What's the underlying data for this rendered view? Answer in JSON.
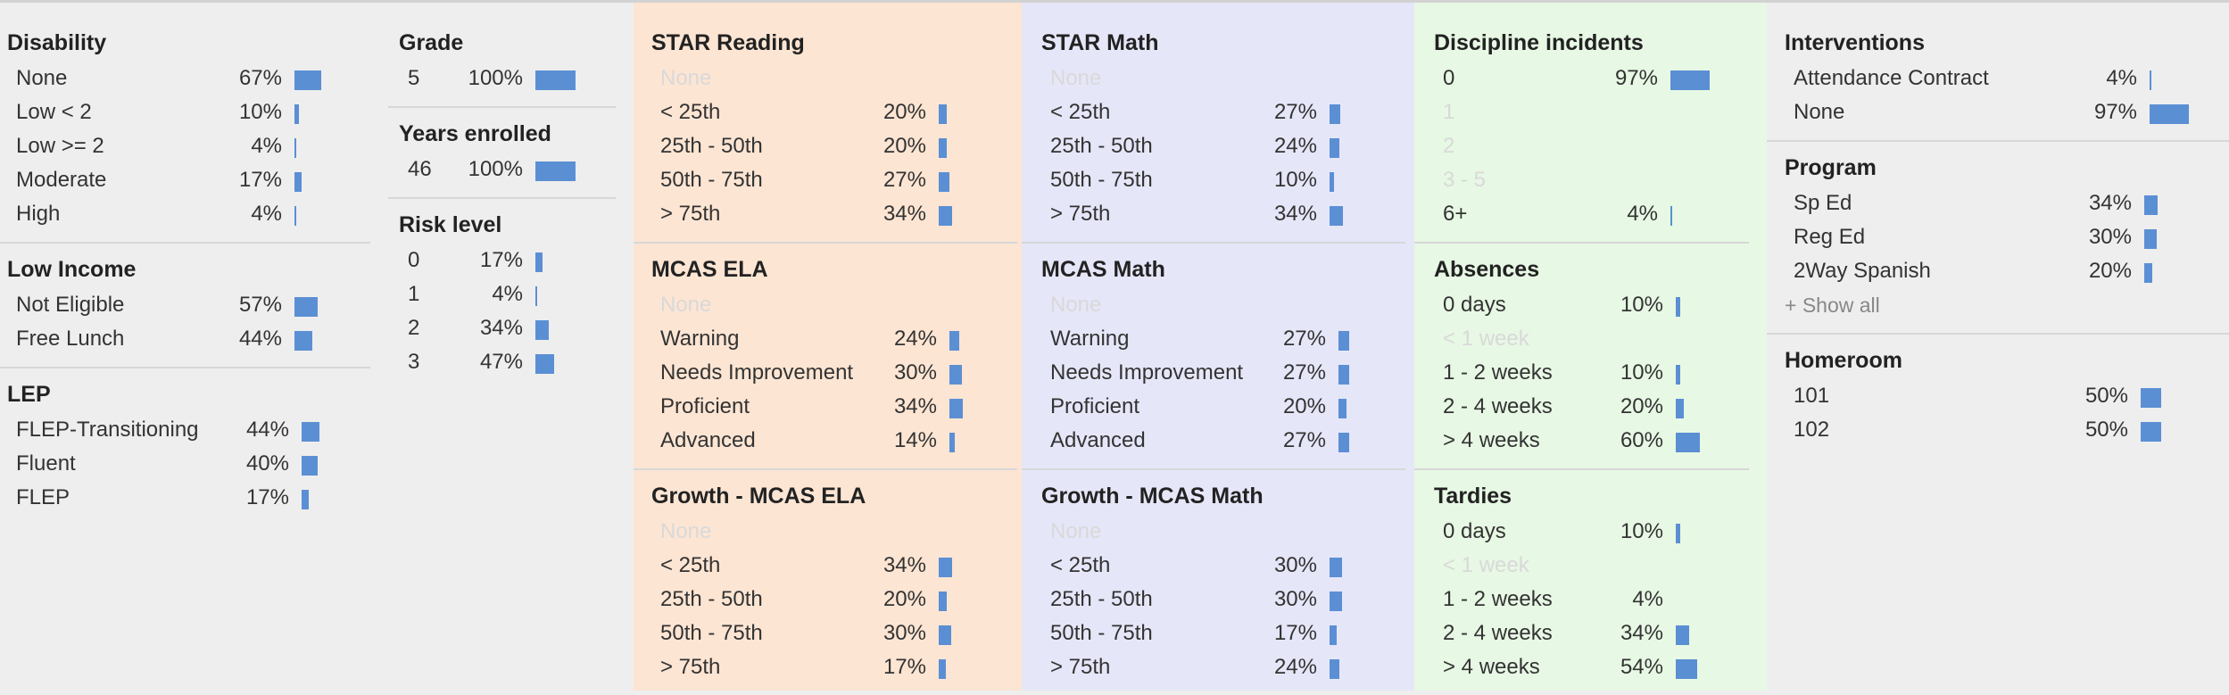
{
  "colors": {
    "page_bg": "#eeeeee",
    "star_reading_bg": "#fde5d3",
    "star_math_bg": "#e6e6f9",
    "discipline_bg": "#e7f8e4",
    "bar": "#5b8fd4",
    "empty_label": "#d9d9d9"
  },
  "columns": [
    {
      "key": "demographics",
      "sections": [
        {
          "title": "Disability",
          "rows": [
            {
              "label": "None",
              "pct": "67%",
              "value": 67
            },
            {
              "label": "Low < 2",
              "pct": "10%",
              "value": 10
            },
            {
              "label": "Low >= 2",
              "pct": "4%",
              "value": 4
            },
            {
              "label": "Moderate",
              "pct": "17%",
              "value": 17
            },
            {
              "label": "High",
              "pct": "4%",
              "value": 4
            }
          ]
        },
        {
          "title": "Low Income",
          "rows": [
            {
              "label": "Not Eligible",
              "pct": "57%",
              "value": 57
            },
            {
              "label": "Free Lunch",
              "pct": "44%",
              "value": 44
            }
          ]
        },
        {
          "title": "LEP",
          "rows": [
            {
              "label": "FLEP-Transitioning",
              "pct": "44%",
              "value": 44
            },
            {
              "label": "Fluent",
              "pct": "40%",
              "value": 40
            },
            {
              "label": "FLEP",
              "pct": "17%",
              "value": 17
            }
          ]
        }
      ]
    },
    {
      "key": "grade",
      "sections": [
        {
          "title": "Grade",
          "rows": [
            {
              "label": "5",
              "pct": "100%",
              "value": 100
            }
          ]
        },
        {
          "title": "Years enrolled",
          "rows": [
            {
              "label": "46",
              "pct": "100%",
              "value": 100
            }
          ]
        },
        {
          "title": "Risk level",
          "rows": [
            {
              "label": "0",
              "pct": "17%",
              "value": 17
            },
            {
              "label": "1",
              "pct": "4%",
              "value": 4
            },
            {
              "label": "2",
              "pct": "34%",
              "value": 34
            },
            {
              "label": "3",
              "pct": "47%",
              "value": 47
            }
          ]
        }
      ]
    },
    {
      "key": "star-reading",
      "sections": [
        {
          "title": "STAR Reading",
          "rows": [
            {
              "label": "None",
              "pct": "",
              "value": 0,
              "empty": true
            },
            {
              "label": "< 25th",
              "pct": "20%",
              "value": 20
            },
            {
              "label": "25th - 50th",
              "pct": "20%",
              "value": 20
            },
            {
              "label": "50th - 75th",
              "pct": "27%",
              "value": 27
            },
            {
              "label": "> 75th",
              "pct": "34%",
              "value": 34
            }
          ]
        },
        {
          "title": "MCAS ELA",
          "rows": [
            {
              "label": "None",
              "pct": "",
              "value": 0,
              "empty": true
            },
            {
              "label": "Warning",
              "pct": "24%",
              "value": 24
            },
            {
              "label": "Needs Improvement",
              "pct": "30%",
              "value": 30
            },
            {
              "label": "Proficient",
              "pct": "34%",
              "value": 34
            },
            {
              "label": "Advanced",
              "pct": "14%",
              "value": 14
            }
          ]
        },
        {
          "title": "Growth - MCAS ELA",
          "rows": [
            {
              "label": "None",
              "pct": "",
              "value": 0,
              "empty": true
            },
            {
              "label": "< 25th",
              "pct": "34%",
              "value": 34
            },
            {
              "label": "25th - 50th",
              "pct": "20%",
              "value": 20
            },
            {
              "label": "50th - 75th",
              "pct": "30%",
              "value": 30
            },
            {
              "label": "> 75th",
              "pct": "17%",
              "value": 17
            }
          ]
        }
      ]
    },
    {
      "key": "star-math",
      "sections": [
        {
          "title": "STAR Math",
          "rows": [
            {
              "label": "None",
              "pct": "",
              "value": 0,
              "empty": true
            },
            {
              "label": "< 25th",
              "pct": "27%",
              "value": 27
            },
            {
              "label": "25th - 50th",
              "pct": "24%",
              "value": 24
            },
            {
              "label": "50th - 75th",
              "pct": "10%",
              "value": 10
            },
            {
              "label": "> 75th",
              "pct": "34%",
              "value": 34
            }
          ]
        },
        {
          "title": "MCAS Math",
          "rows": [
            {
              "label": "None",
              "pct": "",
              "value": 0,
              "empty": true
            },
            {
              "label": "Warning",
              "pct": "27%",
              "value": 27
            },
            {
              "label": "Needs Improvement",
              "pct": "27%",
              "value": 27
            },
            {
              "label": "Proficient",
              "pct": "20%",
              "value": 20
            },
            {
              "label": "Advanced",
              "pct": "27%",
              "value": 27
            }
          ]
        },
        {
          "title": "Growth - MCAS Math",
          "rows": [
            {
              "label": "None",
              "pct": "",
              "value": 0,
              "empty": true
            },
            {
              "label": "< 25th",
              "pct": "30%",
              "value": 30
            },
            {
              "label": "25th - 50th",
              "pct": "30%",
              "value": 30
            },
            {
              "label": "50th - 75th",
              "pct": "17%",
              "value": 17
            },
            {
              "label": "> 75th",
              "pct": "24%",
              "value": 24
            }
          ]
        }
      ]
    },
    {
      "key": "discipline",
      "sections": [
        {
          "title": "Discipline incidents",
          "rows": [
            {
              "label": "0",
              "pct": "97%",
              "value": 97
            },
            {
              "label": "1",
              "pct": "",
              "value": 0,
              "empty": true
            },
            {
              "label": "2",
              "pct": "",
              "value": 0,
              "empty": true
            },
            {
              "label": "3 - 5",
              "pct": "",
              "value": 0,
              "empty": true
            },
            {
              "label": "6+",
              "pct": "4%",
              "value": 4
            }
          ]
        },
        {
          "title": "Absences",
          "rows": [
            {
              "label": "0 days",
              "pct": "10%",
              "value": 10
            },
            {
              "label": "< 1 week",
              "pct": "",
              "value": 0,
              "empty": true
            },
            {
              "label": "1 - 2 weeks",
              "pct": "10%",
              "value": 10
            },
            {
              "label": "2 - 4 weeks",
              "pct": "20%",
              "value": 20
            },
            {
              "label": "> 4 weeks",
              "pct": "60%",
              "value": 60
            }
          ]
        },
        {
          "title": "Tardies",
          "rows": [
            {
              "label": "0 days",
              "pct": "10%",
              "value": 10
            },
            {
              "label": "< 1 week",
              "pct": "",
              "value": 0,
              "empty": true
            },
            {
              "label": "1 - 2 weeks",
              "pct": "4%",
              "value": 4,
              "nobar": true
            },
            {
              "label": "2 - 4 weeks",
              "pct": "34%",
              "value": 34
            },
            {
              "label": "> 4 weeks",
              "pct": "54%",
              "value": 54
            }
          ]
        }
      ]
    },
    {
      "key": "interventions",
      "sections": [
        {
          "title": "Interventions",
          "rows": [
            {
              "label": "Attendance Contract",
              "pct": "4%",
              "value": 4
            },
            {
              "label": "None",
              "pct": "97%",
              "value": 97
            }
          ]
        },
        {
          "title": "Program",
          "rows": [
            {
              "label": "Sp Ed",
              "pct": "34%",
              "value": 34
            },
            {
              "label": "Reg Ed",
              "pct": "30%",
              "value": 30
            },
            {
              "label": "2Way Spanish",
              "pct": "20%",
              "value": 20
            }
          ],
          "show_all": "+ Show all"
        },
        {
          "title": "Homeroom",
          "rows": [
            {
              "label": "101",
              "pct": "50%",
              "value": 50
            },
            {
              "label": "102",
              "pct": "50%",
              "value": 50
            }
          ]
        }
      ]
    }
  ]
}
